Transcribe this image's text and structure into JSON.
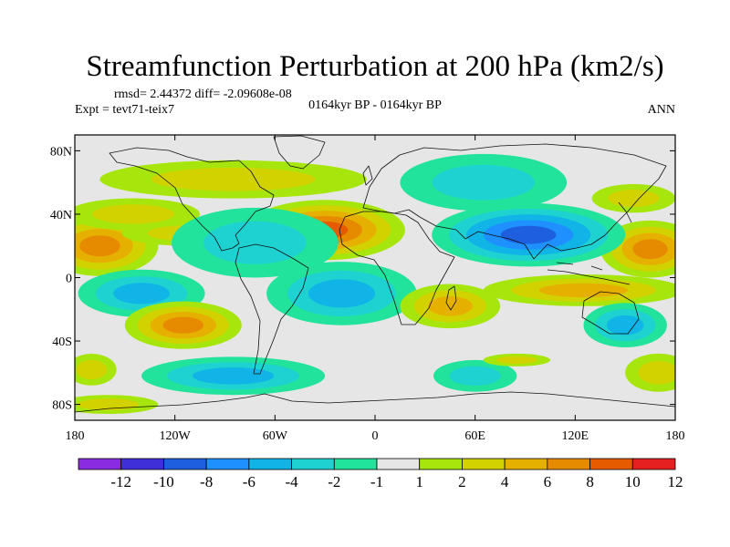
{
  "chart_data": {
    "type": "heatmap",
    "title": "Streamfunction Perturbation at 200 hPa (km2/s)",
    "stats_line": "rmsd= 2.44372 diff= -2.09608e-08",
    "experiment": "Expt = tevt71-teix7",
    "period": "0164kyr BP - 0164kyr BP",
    "season": "ANN",
    "x_ticks": [
      "180",
      "120W",
      "60W",
      "0",
      "60E",
      "120E",
      "180"
    ],
    "y_ticks": [
      "80N",
      "40N",
      "0",
      "40S",
      "80S"
    ],
    "xlim": [
      -180,
      180
    ],
    "ylim": [
      -90,
      90
    ],
    "colorbar": {
      "labels": [
        "-12",
        "-10",
        "-8",
        "-6",
        "-4",
        "-2",
        "-1",
        "1",
        "2",
        "4",
        "6",
        "8",
        "10",
        "12"
      ],
      "colors": [
        "#8a2be2",
        "#3f2fd8",
        "#1e5fe0",
        "#1e90ff",
        "#10b4e6",
        "#1ed2d2",
        "#22e39b",
        "#e6e6e6",
        "#a6e60c",
        "#d2d200",
        "#e6b000",
        "#e68a00",
        "#e65a00",
        "#e62020"
      ]
    },
    "blobs": [
      {
        "lon": -165,
        "lat": 20,
        "rx": 35,
        "ry": 19,
        "value": 6
      },
      {
        "lon": 165,
        "lat": 18,
        "rx": 30,
        "ry": 18,
        "value": 6
      },
      {
        "lon": -30,
        "lat": 30,
        "rx": 48,
        "ry": 19,
        "value": 8
      },
      {
        "lon": -85,
        "lat": 62,
        "rx": 80,
        "ry": 12,
        "value": 2
      },
      {
        "lon": -145,
        "lat": 40,
        "rx": 40,
        "ry": 10,
        "value": 2
      },
      {
        "lon": -112,
        "lat": 28,
        "rx": 40,
        "ry": 8,
        "value": 2
      },
      {
        "lon": 155,
        "lat": 50,
        "rx": 25,
        "ry": 9,
        "value": 2
      },
      {
        "lon": 92,
        "lat": 27,
        "rx": 58,
        "ry": 20,
        "value": -8
      },
      {
        "lon": 65,
        "lat": 60,
        "rx": 50,
        "ry": 18,
        "value": -2
      },
      {
        "lon": -72,
        "lat": 22,
        "rx": 50,
        "ry": 22,
        "value": -2
      },
      {
        "lon": -20,
        "lat": -10,
        "rx": 45,
        "ry": 20,
        "value": -4
      },
      {
        "lon": -140,
        "lat": -10,
        "rx": 38,
        "ry": 15,
        "value": -4
      },
      {
        "lon": -115,
        "lat": -30,
        "rx": 35,
        "ry": 15,
        "value": 6
      },
      {
        "lon": 125,
        "lat": -8,
        "rx": 60,
        "ry": 10,
        "value": 4
      },
      {
        "lon": 45,
        "lat": -18,
        "rx": 30,
        "ry": 14,
        "value": 4
      },
      {
        "lon": 150,
        "lat": -30,
        "rx": 25,
        "ry": 14,
        "value": -4
      },
      {
        "lon": -85,
        "lat": -62,
        "rx": 55,
        "ry": 12,
        "value": -4
      },
      {
        "lon": 60,
        "lat": -62,
        "rx": 25,
        "ry": 10,
        "value": -2
      },
      {
        "lon": 85,
        "lat": -52,
        "rx": 20,
        "ry": 4,
        "value": 2
      },
      {
        "lon": -170,
        "lat": -58,
        "rx": 15,
        "ry": 10,
        "value": 2
      },
      {
        "lon": 170,
        "lat": -60,
        "rx": 20,
        "ry": 12,
        "value": 2
      },
      {
        "lon": -160,
        "lat": -80,
        "rx": 30,
        "ry": 6,
        "value": 2
      }
    ]
  }
}
